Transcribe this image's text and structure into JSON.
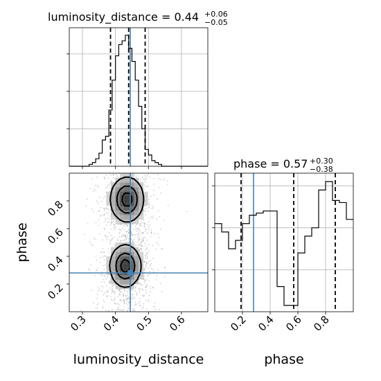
{
  "chart_data": {
    "type": "corner",
    "parameters": [
      "luminosity_distance",
      "phase"
    ],
    "truth": {
      "luminosity_distance": 0.445,
      "phase": 0.28
    },
    "panels": [
      {
        "id": "luminosity_distance_hist",
        "type": "histogram",
        "title": {
          "name": "luminosity_distance",
          "median": "0.44",
          "plus": "+0.06",
          "minus": "−0.05"
        },
        "xlim": [
          0.26,
          0.68
        ],
        "quantiles": [
          0.385,
          0.44,
          0.49
        ],
        "truth": 0.445,
        "bins": {
          "edges": [
            0.26,
            0.27,
            0.28,
            0.29,
            0.3,
            0.31,
            0.32,
            0.33,
            0.34,
            0.35,
            0.36,
            0.37,
            0.38,
            0.39,
            0.4,
            0.41,
            0.42,
            0.43,
            0.44,
            0.45,
            0.46,
            0.47,
            0.48,
            0.49,
            0.5,
            0.51,
            0.52,
            0.53,
            0.54,
            0.55,
            0.56,
            0.57,
            0.58,
            0.59,
            0.6,
            0.61,
            0.62,
            0.63,
            0.64,
            0.65,
            0.66,
            0.67,
            0.68
          ],
          "counts": [
            0,
            0,
            0,
            0,
            0,
            0,
            1,
            2,
            4,
            7,
            14,
            16,
            30,
            46,
            59,
            65,
            67,
            70,
            63,
            56,
            46,
            32,
            20,
            9,
            6,
            3,
            2,
            1,
            0,
            0,
            0,
            0,
            0,
            0,
            0,
            0,
            0,
            0,
            0,
            0,
            0,
            0
          ],
          "ymax": 74
        },
        "xgrid": [
          0.3,
          0.4,
          0.5,
          0.6
        ],
        "ygrid": [
          20,
          40,
          60
        ]
      },
      {
        "id": "joint",
        "type": "contour",
        "xlabel": "luminosity_distance",
        "ylabel": "phase",
        "xlim": [
          0.26,
          0.68
        ],
        "ylim": [
          0.0,
          1.0
        ],
        "xticks": [
          {
            "value": 0.3,
            "label": "0.3"
          },
          {
            "value": 0.4,
            "label": "0.4"
          },
          {
            "value": 0.5,
            "label": "0.5"
          },
          {
            "value": 0.6,
            "label": "0.6"
          }
        ],
        "yticks": [
          {
            "value": 0.2,
            "label": "0.2"
          },
          {
            "value": 0.4,
            "label": "0.4"
          },
          {
            "value": 0.6,
            "label": "0.6"
          },
          {
            "value": 0.8,
            "label": "0.8"
          }
        ],
        "modes": [
          {
            "x": 0.435,
            "y": 0.81,
            "sx": 0.028,
            "sy": 0.09
          },
          {
            "x": 0.43,
            "y": 0.33,
            "sx": 0.026,
            "sy": 0.085
          }
        ],
        "levels": [
          0.2,
          0.55,
          0.85
        ]
      },
      {
        "id": "phase_hist",
        "type": "histogram",
        "title": {
          "name": "phase",
          "median": "0.57",
          "plus": "+0.30",
          "minus": "−0.38"
        },
        "xlim": [
          0.0,
          1.0
        ],
        "quantiles": [
          0.19,
          0.57,
          0.87
        ],
        "truth": 0.28,
        "xticks": [
          {
            "value": 0.2,
            "label": "0.2"
          },
          {
            "value": 0.4,
            "label": "0.4"
          },
          {
            "value": 0.6,
            "label": "0.6"
          },
          {
            "value": 0.8,
            "label": "0.8"
          }
        ],
        "xlabel": "phase",
        "bins": {
          "edges": [
            0.0,
            0.05,
            0.1,
            0.15,
            0.2,
            0.25,
            0.3,
            0.35,
            0.4,
            0.45,
            0.5,
            0.55,
            0.6,
            0.65,
            0.7,
            0.75,
            0.8,
            0.85,
            0.9,
            0.95,
            1.0
          ],
          "counts": [
            42,
            38,
            30,
            34,
            42,
            46,
            47,
            48,
            48,
            12,
            3,
            3,
            28,
            36,
            40,
            58,
            62,
            53,
            52,
            44
          ],
          "ymax": 66
        },
        "xgrid": [
          0.2,
          0.4,
          0.6,
          0.8
        ],
        "ygrid": [
          20,
          40,
          60
        ]
      }
    ]
  }
}
